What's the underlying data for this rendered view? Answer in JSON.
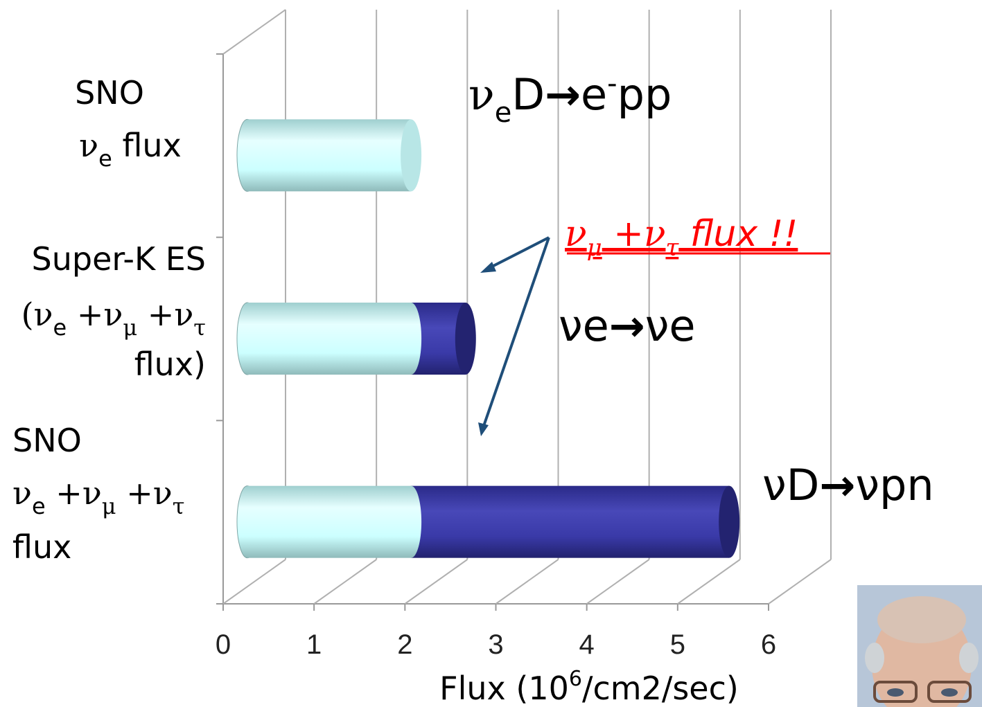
{
  "chart_data": {
    "type": "bar",
    "orientation": "horizontal",
    "stacked": true,
    "categories": [
      [
        [
          "SNO"
        ],
        [
          "ν",
          "e",
          " flux"
        ]
      ],
      [
        [
          "Super-K ES"
        ],
        [
          "(ν",
          "e",
          " +ν",
          "μ",
          " +ν",
          "τ"
        ],
        [
          "flux)"
        ]
      ],
      [
        [
          "SNO"
        ],
        [
          "ν",
          "e",
          " +ν",
          "μ",
          " +ν",
          "τ"
        ],
        [
          "flux"
        ]
      ]
    ],
    "series": [
      {
        "color": "#ccffff",
        "values": [
          1.8,
          1.8,
          1.8
        ]
      },
      {
        "color": "#3a3aa8",
        "values": [
          0,
          0.6,
          3.5
        ]
      }
    ],
    "xlim": [
      0,
      6
    ],
    "xticks": [
      0,
      1,
      2,
      3,
      4,
      5,
      6
    ],
    "xlabel": [
      "Flux (10",
      "6",
      "/cm2/sec)"
    ],
    "annotations": [
      [
        "ν",
        "e",
        "D",
        "→",
        "e",
        "-",
        "pp"
      ],
      [
        "νe",
        "→",
        "νe"
      ],
      [
        "νD",
        "→",
        "νpn"
      ],
      [
        "ν",
        "μ",
        " +ν",
        "τ",
        " flux !!"
      ]
    ]
  }
}
